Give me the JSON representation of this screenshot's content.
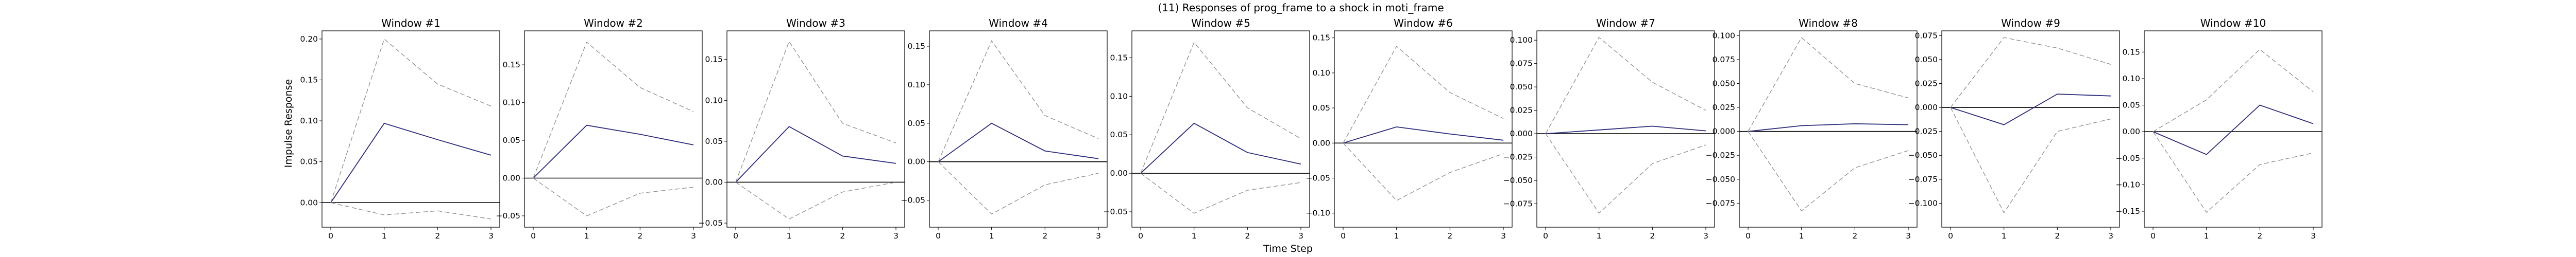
{
  "figure": {
    "title": "(11) Responses of prog_frame to a shock in moti_frame",
    "xlabel": "Time Step",
    "ylabel": "Impulse Response"
  },
  "colors": {
    "irf_line": "#2b2b7a",
    "band_line": "#8c8c8c",
    "zero_line": "#000000"
  },
  "chart_data": [
    {
      "type": "line",
      "title": "Window #1",
      "x": [
        0,
        1,
        2,
        3
      ],
      "ylim": [
        -0.03,
        0.21
      ],
      "yticks": [
        0.0,
        0.05,
        0.1,
        0.15,
        0.2
      ],
      "series": [
        {
          "role": "irf",
          "values": [
            0.0,
            0.097,
            0.077,
            0.058
          ]
        },
        {
          "role": "upper",
          "values": [
            0.0,
            0.2,
            0.145,
            0.118
          ]
        },
        {
          "role": "lower",
          "values": [
            0.0,
            -0.015,
            -0.01,
            -0.02
          ]
        }
      ]
    },
    {
      "type": "line",
      "title": "Window #2",
      "x": [
        0,
        1,
        2,
        3
      ],
      "ylim": [
        -0.065,
        0.195
      ],
      "yticks": [
        -0.05,
        0.0,
        0.05,
        0.1,
        0.15
      ],
      "series": [
        {
          "role": "irf",
          "values": [
            0.0,
            0.07,
            0.058,
            0.044
          ]
        },
        {
          "role": "upper",
          "values": [
            0.0,
            0.18,
            0.12,
            0.088
          ]
        },
        {
          "role": "lower",
          "values": [
            0.0,
            -0.05,
            -0.02,
            -0.012
          ]
        }
      ]
    },
    {
      "type": "line",
      "title": "Window #3",
      "x": [
        0,
        1,
        2,
        3
      ],
      "ylim": [
        -0.055,
        0.185
      ],
      "yticks": [
        -0.05,
        0.0,
        0.05,
        0.1,
        0.15
      ],
      "series": [
        {
          "role": "irf",
          "values": [
            0.0,
            0.068,
            0.032,
            0.023
          ]
        },
        {
          "role": "upper",
          "values": [
            0.0,
            0.172,
            0.072,
            0.048
          ]
        },
        {
          "role": "lower",
          "values": [
            0.0,
            -0.045,
            -0.012,
            0.0
          ]
        }
      ]
    },
    {
      "type": "line",
      "title": "Window #4",
      "x": [
        0,
        1,
        2,
        3
      ],
      "ylim": [
        -0.085,
        0.17
      ],
      "yticks": [
        -0.05,
        0.0,
        0.05,
        0.1,
        0.15
      ],
      "series": [
        {
          "role": "irf",
          "values": [
            0.0,
            0.05,
            0.014,
            0.004
          ]
        },
        {
          "role": "upper",
          "values": [
            0.0,
            0.157,
            0.06,
            0.03
          ]
        },
        {
          "role": "lower",
          "values": [
            0.0,
            -0.068,
            -0.03,
            -0.015
          ]
        }
      ]
    },
    {
      "type": "line",
      "title": "Window #5",
      "x": [
        0,
        1,
        2,
        3
      ],
      "ylim": [
        -0.07,
        0.185
      ],
      "yticks": [
        -0.05,
        0.0,
        0.05,
        0.1,
        0.15
      ],
      "series": [
        {
          "role": "irf",
          "values": [
            0.0,
            0.065,
            0.027,
            0.012
          ]
        },
        {
          "role": "upper",
          "values": [
            0.0,
            0.17,
            0.085,
            0.045
          ]
        },
        {
          "role": "lower",
          "values": [
            0.0,
            -0.052,
            -0.022,
            -0.012
          ]
        }
      ]
    },
    {
      "type": "line",
      "title": "Window #6",
      "x": [
        0,
        1,
        2,
        3
      ],
      "ylim": [
        -0.12,
        0.16
      ],
      "yticks": [
        -0.1,
        -0.05,
        0.0,
        0.05,
        0.1,
        0.15
      ],
      "series": [
        {
          "role": "irf",
          "values": [
            0.0,
            0.023,
            0.013,
            0.004
          ]
        },
        {
          "role": "upper",
          "values": [
            0.0,
            0.138,
            0.072,
            0.035
          ]
        },
        {
          "role": "lower",
          "values": [
            0.0,
            -0.082,
            -0.042,
            -0.015
          ]
        }
      ]
    },
    {
      "type": "line",
      "title": "Window #7",
      "x": [
        0,
        1,
        2,
        3
      ],
      "ylim": [
        -0.1,
        0.11
      ],
      "yticks": [
        -0.075,
        -0.05,
        -0.025,
        0.0,
        0.025,
        0.05,
        0.075,
        0.1
      ],
      "series": [
        {
          "role": "irf",
          "values": [
            0.0,
            0.004,
            0.008,
            0.003
          ]
        },
        {
          "role": "upper",
          "values": [
            0.0,
            0.103,
            0.055,
            0.025
          ]
        },
        {
          "role": "lower",
          "values": [
            0.0,
            -0.085,
            -0.032,
            -0.012
          ]
        }
      ]
    },
    {
      "type": "line",
      "title": "Window #8",
      "x": [
        0,
        1,
        2,
        3
      ],
      "ylim": [
        -0.1,
        0.105
      ],
      "yticks": [
        -0.075,
        -0.05,
        -0.025,
        0.0,
        0.025,
        0.05,
        0.075,
        0.1
      ],
      "series": [
        {
          "role": "irf",
          "values": [
            0.0,
            0.006,
            0.008,
            0.007
          ]
        },
        {
          "role": "upper",
          "values": [
            0.0,
            0.098,
            0.05,
            0.035
          ]
        },
        {
          "role": "lower",
          "values": [
            0.0,
            -0.083,
            -0.038,
            -0.02
          ]
        }
      ]
    },
    {
      "type": "line",
      "title": "Window #9",
      "x": [
        0,
        1,
        2,
        3
      ],
      "ylim": [
        -0.125,
        0.08
      ],
      "yticks": [
        -0.1,
        -0.075,
        -0.05,
        -0.025,
        0.0,
        0.025,
        0.05,
        0.075
      ],
      "series": [
        {
          "role": "irf",
          "values": [
            0.0,
            -0.018,
            0.014,
            0.012
          ]
        },
        {
          "role": "upper",
          "values": [
            0.0,
            0.073,
            0.062,
            0.045
          ]
        },
        {
          "role": "lower",
          "values": [
            0.0,
            -0.11,
            -0.025,
            -0.012
          ]
        }
      ]
    },
    {
      "type": "line",
      "title": "Window #10",
      "x": [
        0,
        1,
        2,
        3
      ],
      "ylim": [
        -0.18,
        0.19
      ],
      "yticks": [
        -0.15,
        -0.1,
        -0.05,
        0.0,
        0.05,
        0.1,
        0.15
      ],
      "series": [
        {
          "role": "irf",
          "values": [
            0.0,
            -0.043,
            0.05,
            0.015
          ]
        },
        {
          "role": "upper",
          "values": [
            0.0,
            0.06,
            0.155,
            0.075
          ]
        },
        {
          "role": "lower",
          "values": [
            0.0,
            -0.152,
            -0.062,
            -0.04
          ]
        }
      ]
    }
  ]
}
